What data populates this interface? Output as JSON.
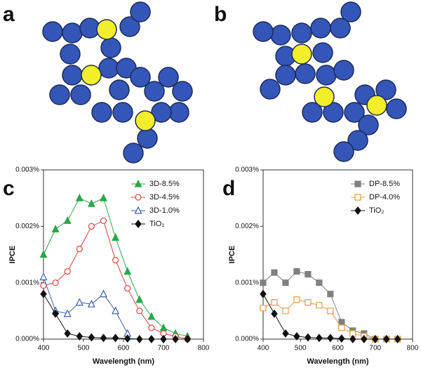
{
  "panel_labels": {
    "a": "a",
    "b": "b"
  },
  "chart_data": [
    {
      "type": "line",
      "label": "c",
      "xlabel": "Wavelength (nm)",
      "ylabel": "IPCE",
      "x": [
        400,
        430,
        460,
        490,
        520,
        550,
        580,
        610,
        640,
        670,
        700,
        730,
        760
      ],
      "xlim": [
        400,
        800
      ],
      "xticks": [
        400,
        500,
        600,
        700,
        800
      ],
      "ylim": [
        0,
        0.003
      ],
      "yticks": [
        {
          "value": 0,
          "label": "0.000%"
        },
        {
          "value": 0.001,
          "label": "0.001%"
        },
        {
          "value": 0.002,
          "label": "0.002%"
        },
        {
          "value": 0.003,
          "label": "0.003%"
        }
      ],
      "series": [
        {
          "name": "3D-8.5%",
          "color": "#2aa84a",
          "marker": "triangle-filled",
          "values": [
            0.0015,
            0.00195,
            0.0021,
            0.0025,
            0.0024,
            0.0025,
            0.0018,
            0.0012,
            0.0007,
            0.0004,
            0.0002,
            0.0001,
            5e-05
          ]
        },
        {
          "name": "3D-4.5%",
          "color": "#d9443a",
          "marker": "circle-open",
          "values": [
            0.00095,
            0.001,
            0.0012,
            0.0016,
            0.002,
            0.0021,
            0.0014,
            0.0009,
            0.0005,
            0.0002,
            0.0001,
            5e-05,
            0
          ]
        },
        {
          "name": "3D-1.0%",
          "color": "#3a5fa8",
          "marker": "triangle-open",
          "values": [
            0.0011,
            0.0005,
            0.00045,
            0.00065,
            0.00062,
            0.0008,
            0.0005,
            0.0001,
            null,
            null,
            null,
            null,
            null
          ]
        },
        {
          "name": "TiO₂",
          "color": "#111111",
          "marker": "diamond-filled",
          "values": [
            0.0008,
            0.00045,
            0.0001,
            5e-05,
            3e-05,
            2e-05,
            2e-05,
            1e-05,
            0,
            0,
            0,
            0,
            0
          ]
        }
      ]
    },
    {
      "type": "line",
      "label": "d",
      "xlabel": "Wavelength (nm)",
      "ylabel": "IPCE",
      "x": [
        400,
        430,
        460,
        490,
        520,
        550,
        580,
        610,
        640,
        670,
        700,
        730,
        760
      ],
      "xlim": [
        400,
        800
      ],
      "xticks": [
        400,
        500,
        600,
        700,
        800
      ],
      "ylim": [
        0,
        0.003
      ],
      "yticks": [
        {
          "value": 0,
          "label": "0.000%"
        },
        {
          "value": 0.001,
          "label": "0.001%"
        },
        {
          "value": 0.002,
          "label": "0.002%"
        },
        {
          "value": 0.003,
          "label": "0.003%"
        }
      ],
      "series": [
        {
          "name": "DP-8.5%",
          "color": "#808080",
          "marker": "square-filled",
          "values": [
            0.001,
            0.00118,
            0.001,
            0.0012,
            0.00115,
            0.001,
            0.0008,
            0.0003,
            0.00015,
            0.0001,
            0,
            0,
            0
          ]
        },
        {
          "name": "DP-4.0%",
          "color": "#e89a3c",
          "marker": "square-open",
          "values": [
            0.00055,
            0.00065,
            0.0005,
            0.0007,
            0.00065,
            0.0006,
            0.0005,
            0.0002,
            0.0001,
            5e-05,
            0,
            0,
            0
          ]
        },
        {
          "name": "TiO₂",
          "color": "#111111",
          "marker": "diamond-filled",
          "values": [
            0.0008,
            0.00045,
            0.0001,
            5e-05,
            3e-05,
            2e-05,
            2e-05,
            1e-05,
            0,
            0,
            0,
            0,
            0
          ]
        }
      ]
    }
  ]
}
